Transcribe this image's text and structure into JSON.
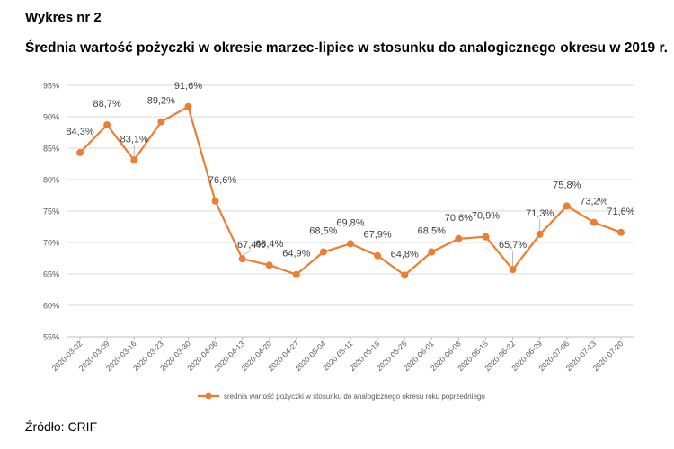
{
  "heading": "Wykres nr 2",
  "source": "Źródło: CRIF",
  "chart_data": {
    "type": "line",
    "title": "Średnia wartość pożyczki w okresie marzec-lipiec w stosunku do analogicznego okresu w 2019 r.",
    "x": [
      "2020-03-02",
      "2020-03-09",
      "2020-03-16",
      "2020-03-23",
      "2020-03-30",
      "2020-04-06",
      "2020-04-13",
      "2020-04-20",
      "2020-04-27",
      "2020-05-04",
      "2020-05-11",
      "2020-05-18",
      "2020-05-25",
      "2020-06-01",
      "2020-06-08",
      "2020-06-15",
      "2020-06-22",
      "2020-06-29",
      "2020-07-06",
      "2020-07-13",
      "2020-07-20"
    ],
    "series": [
      {
        "name": "średnia wartość pożyczki w stosunku do analogicznego okresu roku poprzedniego",
        "values": [
          84.3,
          88.7,
          83.1,
          89.2,
          91.6,
          76.6,
          67.4,
          66.4,
          64.9,
          68.5,
          69.8,
          67.9,
          64.8,
          68.5,
          70.6,
          70.9,
          65.7,
          71.3,
          75.8,
          73.2,
          71.6
        ],
        "labels": [
          "84,3%",
          "88,7%",
          "83,1%",
          "89,2%",
          "91,6%",
          "76,6%",
          "67,4%",
          "66,4%",
          "64,9%",
          "68,5%",
          "69,8%",
          "67,9%",
          "64,8%",
          "68,5%",
          "70,6%",
          "70,9%",
          "65,7%",
          "71,3%",
          "75,8%",
          "73,2%",
          "71,6%"
        ]
      }
    ],
    "yticks": [
      "55%",
      "60%",
      "65%",
      "70%",
      "75%",
      "80%",
      "85%",
      "90%",
      "95%"
    ],
    "ylim": [
      55,
      95
    ],
    "ystep": 5,
    "grid": true,
    "legend": "bottom",
    "color": "#ED7D31"
  }
}
